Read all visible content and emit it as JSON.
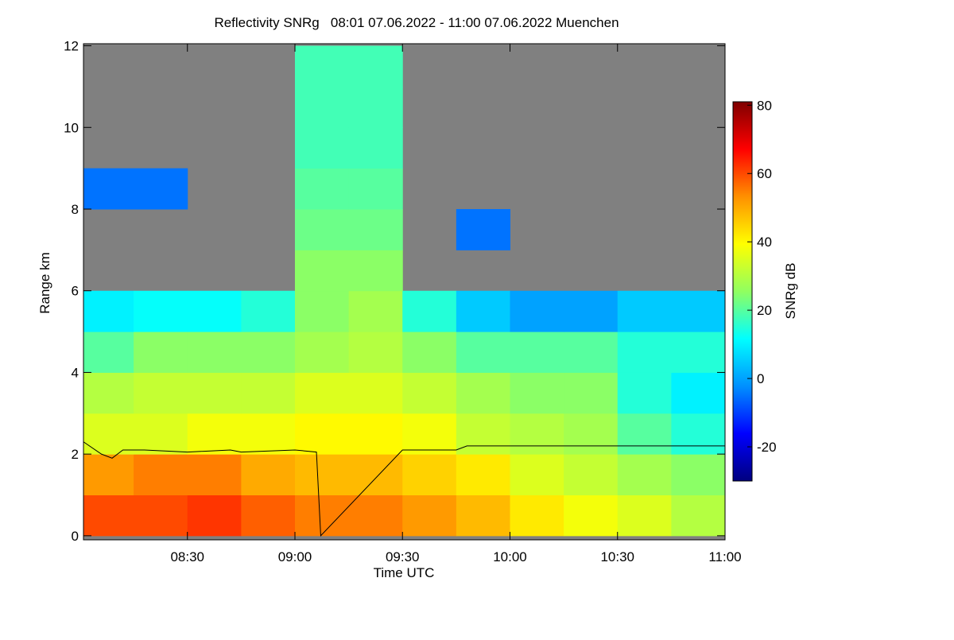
{
  "chart_data": {
    "type": "heatmap",
    "title": "Reflectivity SNRg   08:01 07.06.2022 - 11:00 07.06.2022 Muenchen",
    "x_label": "Time UTC",
    "y_label": "Range km",
    "colorbar_label": "SNRg dB",
    "xlim": [
      8.0167,
      11.0
    ],
    "xticks": [
      {
        "value": 8.5,
        "label": "08:30"
      },
      {
        "value": 9.0,
        "label": "09:00"
      },
      {
        "value": 9.5,
        "label": "09:30"
      },
      {
        "value": 10.0,
        "label": "10:00"
      },
      {
        "value": 10.5,
        "label": "10:30"
      },
      {
        "value": 11.0,
        "label": "11:00"
      }
    ],
    "ylim": [
      -0.1,
      12.05
    ],
    "yticks": [
      0,
      2,
      4,
      6,
      8,
      10,
      12
    ],
    "zlim": [
      -30,
      81
    ],
    "zticks": [
      -20,
      0,
      20,
      40,
      60,
      80
    ],
    "colormap": [
      "#00007f",
      "#0000ff",
      "#0090ff",
      "#00ffff",
      "#90ff60",
      "#ffff00",
      "#ff9000",
      "#ff0000",
      "#7f0000"
    ],
    "nodata_color": "#808080",
    "x_edges": [
      8.0167,
      8.25,
      8.5,
      8.75,
      9.0,
      9.25,
      9.5,
      9.75,
      10.0,
      10.25,
      10.5,
      10.75,
      11.0
    ],
    "y_edges": [
      0,
      1,
      2,
      3,
      4,
      5,
      6,
      7,
      8,
      9,
      10,
      11,
      12
    ],
    "z": [
      [
        60,
        60,
        62,
        58,
        55,
        55,
        52,
        48,
        42,
        38,
        35,
        30
      ],
      [
        52,
        55,
        55,
        50,
        48,
        48,
        45,
        42,
        35,
        32,
        28,
        25
      ],
      [
        35,
        35,
        38,
        38,
        40,
        40,
        38,
        32,
        30,
        28,
        20,
        15
      ],
      [
        30,
        32,
        32,
        32,
        35,
        35,
        32,
        28,
        25,
        25,
        15,
        10
      ],
      [
        20,
        25,
        25,
        25,
        28,
        30,
        25,
        20,
        20,
        20,
        15,
        15
      ],
      [
        10,
        12,
        12,
        15,
        25,
        28,
        15,
        5,
        0,
        0,
        5,
        5
      ],
      [
        null,
        null,
        null,
        null,
        25,
        25,
        null,
        null,
        null,
        null,
        null,
        null
      ],
      [
        null,
        null,
        null,
        null,
        22,
        22,
        null,
        -5,
        null,
        null,
        null,
        null
      ],
      [
        -5,
        -5,
        null,
        null,
        20,
        20,
        null,
        null,
        null,
        null,
        null,
        null
      ],
      [
        null,
        null,
        null,
        null,
        18,
        18,
        null,
        null,
        null,
        null,
        null,
        null
      ],
      [
        null,
        null,
        null,
        null,
        18,
        18,
        null,
        null,
        null,
        null,
        null,
        null
      ],
      [
        null,
        null,
        null,
        null,
        18,
        18,
        null,
        null,
        null,
        null,
        null,
        null
      ]
    ],
    "line": {
      "color": "#000000",
      "x": [
        8.0167,
        8.1,
        8.15,
        8.2,
        8.3,
        8.5,
        8.7,
        8.75,
        9.0,
        9.1,
        9.12,
        9.5,
        9.75,
        9.8,
        10.0,
        10.5,
        11.0
      ],
      "values": [
        2.3,
        2.0,
        1.9,
        2.1,
        2.1,
        2.05,
        2.1,
        2.05,
        2.1,
        2.05,
        0,
        2.1,
        2.1,
        2.2,
        2.2,
        2.2,
        2.2
      ]
    }
  }
}
